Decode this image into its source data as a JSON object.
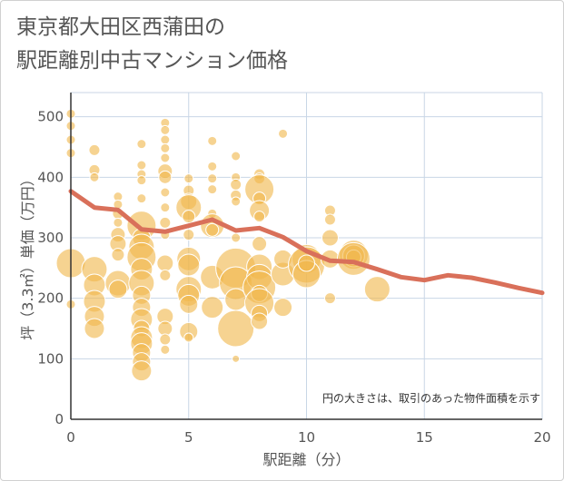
{
  "title_lines": [
    "東京都大田区西蒲田の",
    "駅距離別中古マンション価格"
  ],
  "chart_data": {
    "type": "scatter",
    "title": "東京都大田区西蒲田の駅距離別中古マンション価格",
    "xlabel": "駅距離（分）",
    "ylabel": "坪（3.3㎡）単価（万円）",
    "xlim": [
      0,
      20
    ],
    "ylim": [
      0,
      540
    ],
    "xticks": [
      0,
      5,
      10,
      15,
      20
    ],
    "yticks": [
      0,
      100,
      200,
      300,
      400,
      500
    ],
    "grid": true,
    "annotation": "円の大きさは、取引のあった物件面積を示す",
    "colors": {
      "bubble": "#f0b84e",
      "line": "#d9705a",
      "grid": "#c8d6e6"
    },
    "series": [
      {
        "kind": "bubble",
        "points": [
          {
            "x": 0,
            "y": 505,
            "s": 5
          },
          {
            "x": 0,
            "y": 485,
            "s": 5
          },
          {
            "x": 0,
            "y": 462,
            "s": 5
          },
          {
            "x": 0,
            "y": 440,
            "s": 5
          },
          {
            "x": 0,
            "y": 258,
            "s": 16
          },
          {
            "x": 0,
            "y": 190,
            "s": 5
          },
          {
            "x": 1,
            "y": 445,
            "s": 6
          },
          {
            "x": 1,
            "y": 412,
            "s": 6
          },
          {
            "x": 1,
            "y": 400,
            "s": 5
          },
          {
            "x": 1,
            "y": 248,
            "s": 14
          },
          {
            "x": 1,
            "y": 222,
            "s": 12
          },
          {
            "x": 1,
            "y": 195,
            "s": 12
          },
          {
            "x": 1,
            "y": 170,
            "s": 11
          },
          {
            "x": 1,
            "y": 150,
            "s": 11
          },
          {
            "x": 2,
            "y": 368,
            "s": 5
          },
          {
            "x": 2,
            "y": 355,
            "s": 5
          },
          {
            "x": 2,
            "y": 340,
            "s": 6
          },
          {
            "x": 2,
            "y": 325,
            "s": 5
          },
          {
            "x": 2,
            "y": 305,
            "s": 8
          },
          {
            "x": 2,
            "y": 290,
            "s": 9
          },
          {
            "x": 2,
            "y": 272,
            "s": 7
          },
          {
            "x": 2,
            "y": 225,
            "s": 14
          },
          {
            "x": 2,
            "y": 215,
            "s": 10
          },
          {
            "x": 3,
            "y": 455,
            "s": 5
          },
          {
            "x": 3,
            "y": 420,
            "s": 5
          },
          {
            "x": 3,
            "y": 405,
            "s": 5
          },
          {
            "x": 3,
            "y": 395,
            "s": 5
          },
          {
            "x": 3,
            "y": 365,
            "s": 5
          },
          {
            "x": 3,
            "y": 320,
            "s": 16
          },
          {
            "x": 3,
            "y": 300,
            "s": 10
          },
          {
            "x": 3,
            "y": 285,
            "s": 14
          },
          {
            "x": 3,
            "y": 268,
            "s": 16
          },
          {
            "x": 3,
            "y": 248,
            "s": 12
          },
          {
            "x": 3,
            "y": 225,
            "s": 14
          },
          {
            "x": 3,
            "y": 205,
            "s": 10
          },
          {
            "x": 3,
            "y": 185,
            "s": 10
          },
          {
            "x": 3,
            "y": 165,
            "s": 12
          },
          {
            "x": 3,
            "y": 150,
            "s": 9
          },
          {
            "x": 3,
            "y": 135,
            "s": 12
          },
          {
            "x": 3,
            "y": 125,
            "s": 12
          },
          {
            "x": 3,
            "y": 110,
            "s": 10
          },
          {
            "x": 3,
            "y": 95,
            "s": 10
          },
          {
            "x": 3,
            "y": 80,
            "s": 11
          },
          {
            "x": 4,
            "y": 490,
            "s": 5
          },
          {
            "x": 4,
            "y": 478,
            "s": 5
          },
          {
            "x": 4,
            "y": 462,
            "s": 5
          },
          {
            "x": 4,
            "y": 448,
            "s": 5
          },
          {
            "x": 4,
            "y": 432,
            "s": 5
          },
          {
            "x": 4,
            "y": 410,
            "s": 8
          },
          {
            "x": 4,
            "y": 400,
            "s": 7
          },
          {
            "x": 4,
            "y": 375,
            "s": 5
          },
          {
            "x": 4,
            "y": 350,
            "s": 5
          },
          {
            "x": 4,
            "y": 325,
            "s": 6
          },
          {
            "x": 4,
            "y": 305,
            "s": 5
          },
          {
            "x": 4,
            "y": 258,
            "s": 9
          },
          {
            "x": 4,
            "y": 238,
            "s": 6
          },
          {
            "x": 4,
            "y": 170,
            "s": 9
          },
          {
            "x": 4,
            "y": 150,
            "s": 8
          },
          {
            "x": 4,
            "y": 132,
            "s": 6
          },
          {
            "x": 4,
            "y": 115,
            "s": 5
          },
          {
            "x": 5,
            "y": 398,
            "s": 5
          },
          {
            "x": 5,
            "y": 378,
            "s": 6
          },
          {
            "x": 5,
            "y": 360,
            "s": 9
          },
          {
            "x": 5,
            "y": 350,
            "s": 14
          },
          {
            "x": 5,
            "y": 335,
            "s": 7
          },
          {
            "x": 5,
            "y": 305,
            "s": 6
          },
          {
            "x": 5,
            "y": 265,
            "s": 13
          },
          {
            "x": 5,
            "y": 255,
            "s": 12
          },
          {
            "x": 5,
            "y": 215,
            "s": 14
          },
          {
            "x": 5,
            "y": 205,
            "s": 12
          },
          {
            "x": 5,
            "y": 190,
            "s": 10
          },
          {
            "x": 5,
            "y": 145,
            "s": 10
          },
          {
            "x": 5,
            "y": 135,
            "s": 5
          },
          {
            "x": 6,
            "y": 460,
            "s": 5
          },
          {
            "x": 6,
            "y": 418,
            "s": 5
          },
          {
            "x": 6,
            "y": 398,
            "s": 5
          },
          {
            "x": 6,
            "y": 380,
            "s": 5
          },
          {
            "x": 6,
            "y": 340,
            "s": 5
          },
          {
            "x": 6,
            "y": 320,
            "s": 13
          },
          {
            "x": 6,
            "y": 313,
            "s": 7
          },
          {
            "x": 6,
            "y": 235,
            "s": 13
          },
          {
            "x": 6,
            "y": 185,
            "s": 12
          },
          {
            "x": 7,
            "y": 435,
            "s": 5
          },
          {
            "x": 7,
            "y": 400,
            "s": 5
          },
          {
            "x": 7,
            "y": 388,
            "s": 6
          },
          {
            "x": 7,
            "y": 370,
            "s": 6
          },
          {
            "x": 7,
            "y": 360,
            "s": 5
          },
          {
            "x": 7,
            "y": 300,
            "s": 5
          },
          {
            "x": 7,
            "y": 250,
            "s": 22
          },
          {
            "x": 7,
            "y": 225,
            "s": 18
          },
          {
            "x": 7,
            "y": 198,
            "s": 12
          },
          {
            "x": 7,
            "y": 150,
            "s": 20
          },
          {
            "x": 7,
            "y": 100,
            "s": 4
          },
          {
            "x": 8,
            "y": 405,
            "s": 6
          },
          {
            "x": 8,
            "y": 398,
            "s": 6
          },
          {
            "x": 8,
            "y": 380,
            "s": 16
          },
          {
            "x": 8,
            "y": 365,
            "s": 7
          },
          {
            "x": 8,
            "y": 345,
            "s": 11
          },
          {
            "x": 8,
            "y": 335,
            "s": 6
          },
          {
            "x": 8,
            "y": 290,
            "s": 8
          },
          {
            "x": 8,
            "y": 252,
            "s": 14
          },
          {
            "x": 8,
            "y": 235,
            "s": 14
          },
          {
            "x": 8,
            "y": 218,
            "s": 18
          },
          {
            "x": 8,
            "y": 208,
            "s": 9
          },
          {
            "x": 8,
            "y": 192,
            "s": 16
          },
          {
            "x": 8,
            "y": 175,
            "s": 9
          },
          {
            "x": 8,
            "y": 162,
            "s": 9
          },
          {
            "x": 9,
            "y": 472,
            "s": 5
          },
          {
            "x": 9,
            "y": 240,
            "s": 13
          },
          {
            "x": 9,
            "y": 265,
            "s": 10
          },
          {
            "x": 9,
            "y": 185,
            "s": 10
          },
          {
            "x": 10,
            "y": 265,
            "s": 16
          },
          {
            "x": 10,
            "y": 255,
            "s": 20
          },
          {
            "x": 10,
            "y": 240,
            "s": 15
          },
          {
            "x": 10,
            "y": 258,
            "s": 9
          },
          {
            "x": 11,
            "y": 345,
            "s": 6
          },
          {
            "x": 11,
            "y": 330,
            "s": 6
          },
          {
            "x": 11,
            "y": 300,
            "s": 9
          },
          {
            "x": 11,
            "y": 265,
            "s": 10
          },
          {
            "x": 11,
            "y": 200,
            "s": 6
          },
          {
            "x": 12,
            "y": 272,
            "s": 16
          },
          {
            "x": 12,
            "y": 270,
            "s": 12
          },
          {
            "x": 12,
            "y": 268,
            "s": 8
          },
          {
            "x": 12,
            "y": 265,
            "s": 18
          },
          {
            "x": 13,
            "y": 215,
            "s": 14
          }
        ]
      },
      {
        "kind": "line",
        "x": [
          0,
          1,
          2,
          3,
          4,
          5,
          6,
          7,
          8,
          9,
          10,
          11,
          12,
          13,
          14,
          15,
          16,
          17,
          18,
          19,
          20
        ],
        "y": [
          377,
          350,
          346,
          314,
          310,
          320,
          330,
          312,
          316,
          301,
          278,
          262,
          260,
          248,
          235,
          230,
          238,
          234,
          226,
          217,
          209
        ]
      }
    ]
  }
}
